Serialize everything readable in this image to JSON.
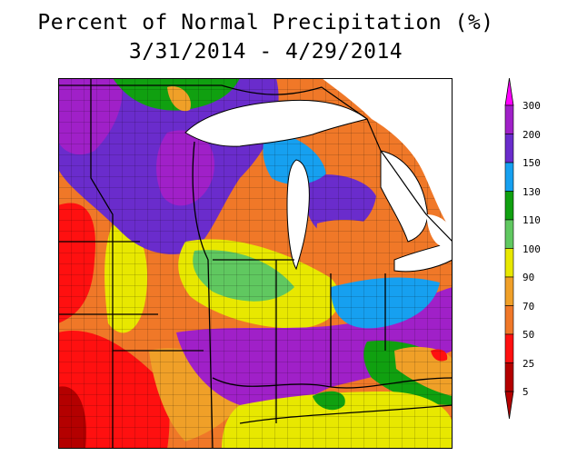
{
  "title": "Percent of Normal Precipitation (%)",
  "date_range": "3/31/2014 - 4/29/2014",
  "legend": {
    "bins": [
      {
        "label": "300",
        "color": "#ff00ff"
      },
      {
        "label": "200",
        "color": "#a020c8"
      },
      {
        "label": "150",
        "color": "#6a2ccc"
      },
      {
        "label": "130",
        "color": "#16a0f0"
      },
      {
        "label": "110",
        "color": "#10a010"
      },
      {
        "label": "100",
        "color": "#60c860"
      },
      {
        "label": "90",
        "color": "#e8e800"
      },
      {
        "label": "70",
        "color": "#f0a028"
      },
      {
        "label": "50",
        "color": "#f07828"
      },
      {
        "label": "25",
        "color": "#ff1010"
      },
      {
        "label": "5",
        "color": "#b40000"
      }
    ],
    "bottom_color": "#b40000"
  },
  "colors": {
    "lake": "#ffffff",
    "border": "#000000"
  }
}
